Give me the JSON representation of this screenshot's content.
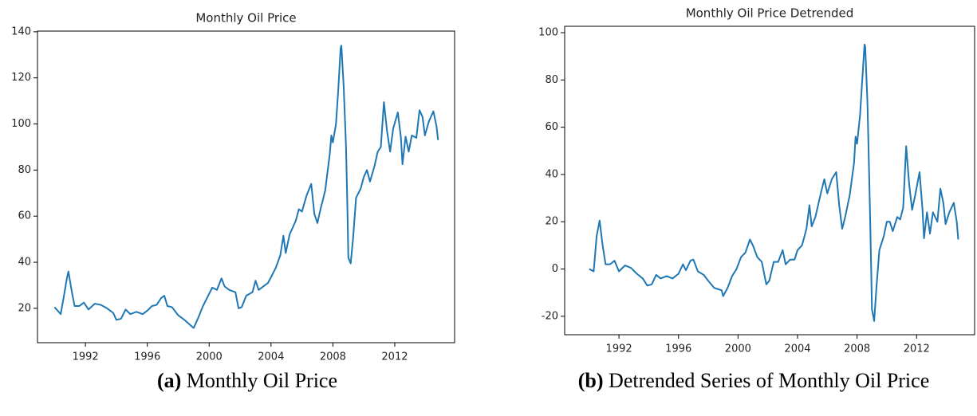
{
  "chart_data": [
    {
      "type": "line",
      "title": "Monthly Oil Price",
      "xlim": [
        1988.9,
        2015.87
      ],
      "ylim": [
        5.1,
        140.3
      ],
      "xticks": [
        1992,
        1996,
        2000,
        2004,
        2008,
        2012
      ],
      "yticks": [
        20,
        40,
        60,
        80,
        100,
        120,
        140
      ],
      "series": [
        {
          "color": "#1f77b4",
          "x": [
            1990.0,
            1990.4,
            1990.6,
            1990.8,
            1990.9,
            1991.1,
            1991.3,
            1991.6,
            1991.9,
            1992.2,
            1992.6,
            1993.0,
            1993.4,
            1993.8,
            1994.0,
            1994.3,
            1994.6,
            1994.9,
            1995.3,
            1995.7,
            1996.0,
            1996.3,
            1996.6,
            1996.9,
            1997.1,
            1997.3,
            1997.6,
            1998.0,
            1998.4,
            1998.9,
            1999.0,
            1999.3,
            1999.6,
            1999.9,
            2000.2,
            2000.5,
            2000.8,
            2001.0,
            2001.3,
            2001.7,
            2001.9,
            2002.1,
            2002.4,
            2002.8,
            2003.0,
            2003.2,
            2003.5,
            2003.8,
            2004.0,
            2004.3,
            2004.6,
            2004.8,
            2004.95,
            2005.2,
            2005.6,
            2005.8,
            2006.0,
            2006.3,
            2006.6,
            2006.8,
            2007.0,
            2007.2,
            2007.5,
            2007.8,
            2007.9,
            2008.0,
            2008.2,
            2008.35,
            2008.5,
            2008.55,
            2008.7,
            2008.85,
            2008.95,
            2009.0,
            2009.15,
            2009.3,
            2009.5,
            2009.8,
            2010.0,
            2010.2,
            2010.4,
            2010.7,
            2010.9,
            2011.1,
            2011.3,
            2011.5,
            2011.7,
            2011.9,
            2012.2,
            2012.4,
            2012.5,
            2012.7,
            2012.9,
            2013.1,
            2013.4,
            2013.6,
            2013.8,
            2013.95,
            2014.2,
            2014.5,
            2014.7,
            2014.8
          ],
          "values": [
            20.5,
            17.5,
            25,
            33,
            36,
            28,
            21,
            21,
            22.5,
            19.5,
            22,
            21.5,
            20,
            18,
            15,
            15.5,
            19.5,
            17.5,
            18.5,
            17.5,
            19,
            21,
            21.5,
            24.5,
            25.5,
            21,
            20.5,
            17,
            15,
            12,
            11.5,
            16,
            21,
            25,
            29,
            28,
            33,
            29.5,
            28,
            27,
            20,
            20.5,
            25.5,
            27,
            32,
            28,
            29.5,
            31,
            33.5,
            37.5,
            43,
            51.5,
            44,
            52,
            58,
            63,
            62,
            69,
            74,
            61,
            57,
            63,
            71,
            87,
            95,
            92,
            100,
            115,
            133,
            134,
            116,
            90,
            60,
            42,
            39.5,
            50,
            68,
            72,
            77,
            80,
            75,
            82,
            88,
            90,
            109.5,
            97,
            88,
            98,
            105,
            94,
            82.5,
            94.5,
            88,
            95,
            94,
            106,
            103,
            95,
            101,
            105.5,
            99,
            93
          ]
        }
      ]
    },
    {
      "type": "line",
      "title": "Monthly Oil Price Detrended",
      "xlim": [
        1988.35,
        2015.9
      ],
      "ylim": [
        -27.8,
        102.7
      ],
      "xticks": [
        1992,
        1996,
        2000,
        2004,
        2008,
        2012
      ],
      "yticks": [
        -20,
        0,
        20,
        40,
        60,
        80,
        100
      ],
      "series": [
        {
          "color": "#1f77b4",
          "x": [
            1990.0,
            1990.3,
            1990.5,
            1990.7,
            1990.9,
            1991.1,
            1991.4,
            1991.7,
            1992.0,
            1992.4,
            1992.8,
            1993.2,
            1993.6,
            1993.9,
            1994.2,
            1994.5,
            1994.8,
            1995.2,
            1995.6,
            1996.0,
            1996.3,
            1996.5,
            1996.8,
            1997.0,
            1997.3,
            1997.7,
            1998.0,
            1998.4,
            1998.9,
            1999.0,
            1999.3,
            1999.6,
            1999.9,
            2000.2,
            2000.5,
            2000.8,
            2001.0,
            2001.3,
            2001.6,
            2001.9,
            2002.1,
            2002.4,
            2002.7,
            2003.0,
            2003.2,
            2003.5,
            2003.8,
            2004.0,
            2004.3,
            2004.6,
            2004.8,
            2004.95,
            2005.2,
            2005.6,
            2005.8,
            2006.0,
            2006.3,
            2006.6,
            2006.8,
            2007.0,
            2007.2,
            2007.5,
            2007.8,
            2007.9,
            2008.0,
            2008.2,
            2008.35,
            2008.5,
            2008.55,
            2008.7,
            2008.85,
            2008.95,
            2009.0,
            2009.15,
            2009.3,
            2009.5,
            2009.8,
            2010.0,
            2010.2,
            2010.4,
            2010.7,
            2010.9,
            2011.1,
            2011.3,
            2011.5,
            2011.7,
            2011.9,
            2012.2,
            2012.4,
            2012.5,
            2012.7,
            2012.9,
            2013.1,
            2013.4,
            2013.6,
            2013.8,
            2013.95,
            2014.2,
            2014.5,
            2014.7,
            2014.8
          ],
          "values": [
            0,
            -1,
            14,
            20.5,
            10,
            2,
            2,
            3.5,
            -1,
            1.5,
            0.5,
            -2,
            -4,
            -7,
            -6.5,
            -2.5,
            -4,
            -3,
            -4,
            -2,
            2,
            -0.5,
            3.5,
            4,
            -1,
            -2.5,
            -5,
            -8,
            -9,
            -11.5,
            -8,
            -3,
            0,
            5,
            7,
            12.5,
            10,
            5,
            3,
            -6.5,
            -5,
            3,
            3,
            8,
            2,
            4,
            4,
            8,
            10,
            17,
            27,
            18,
            22,
            33,
            38,
            32,
            38,
            41,
            27,
            17,
            22,
            31,
            45,
            56,
            53,
            65,
            80,
            95,
            94,
            70,
            30,
            0,
            -17,
            -22,
            -8,
            8,
            14,
            20,
            20,
            16,
            22,
            21,
            26,
            52,
            36,
            25,
            31,
            41,
            25,
            13,
            24,
            15,
            24,
            20,
            34,
            28,
            19,
            24,
            28,
            20,
            12.5
          ]
        }
      ]
    }
  ],
  "captions": [
    {
      "label": "(a)",
      "text": "Monthly Oil Price"
    },
    {
      "label": "(b)",
      "text": "Detrended Series of Monthly Oil Price"
    }
  ]
}
